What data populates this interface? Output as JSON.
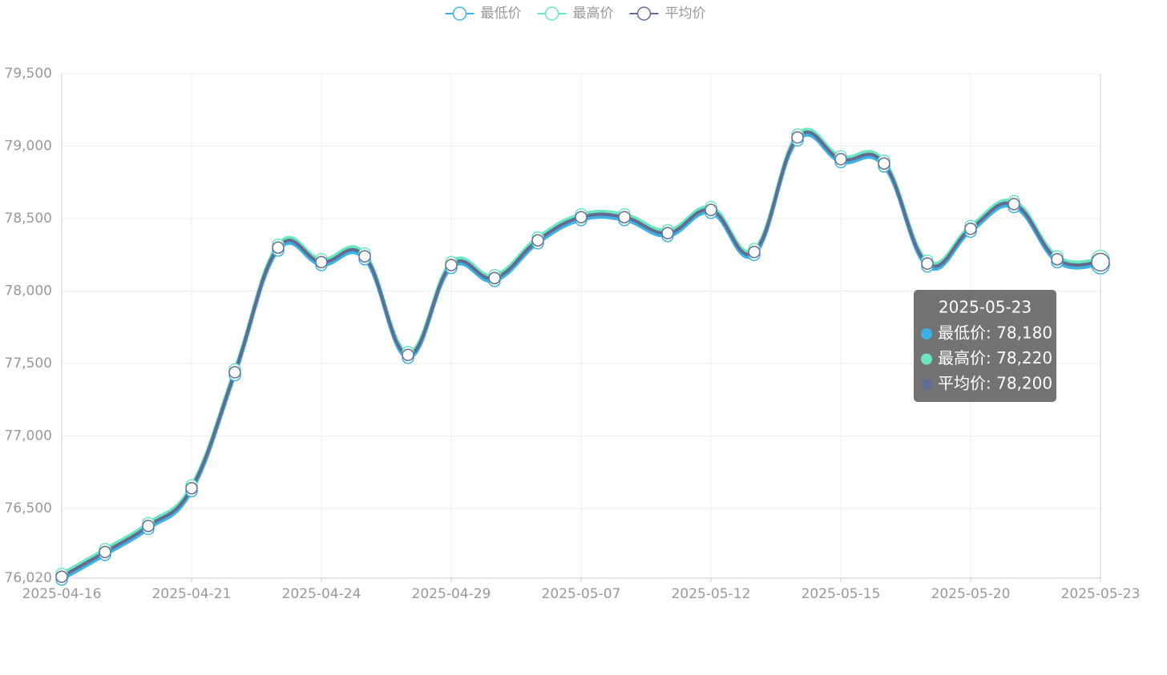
{
  "chart_data": {
    "type": "line",
    "categories": [
      "2025-04-16",
      null,
      null,
      "2025-04-21",
      null,
      null,
      "2025-04-24",
      null,
      null,
      "2025-04-29",
      null,
      null,
      "2025-05-07",
      null,
      null,
      "2025-05-12",
      null,
      null,
      "2025-05-15",
      null,
      null,
      "2025-05-20",
      null,
      null,
      "2025-05-23"
    ],
    "series": [
      {
        "name": "最低价",
        "color": "#3fb1e3",
        "values": [
          76010,
          76180,
          76360,
          76620,
          77420,
          78280,
          78180,
          78220,
          77540,
          78160,
          78070,
          78330,
          78490,
          78490,
          78380,
          78540,
          78250,
          79040,
          78890,
          78860,
          78170,
          78410,
          78580,
          78200,
          78180
        ]
      },
      {
        "name": "最高价",
        "color": "#6be6c1",
        "values": [
          76050,
          76220,
          76400,
          76660,
          77460,
          78320,
          78220,
          78260,
          77580,
          78200,
          78110,
          78370,
          78530,
          78530,
          78420,
          78580,
          78290,
          79080,
          78930,
          78900,
          78210,
          78450,
          78620,
          78240,
          78220
        ]
      },
      {
        "name": "平均价",
        "color": "#626c91",
        "values": [
          76030,
          76200,
          76380,
          76640,
          77440,
          78300,
          78200,
          78240,
          77560,
          78180,
          78090,
          78350,
          78510,
          78510,
          78400,
          78560,
          78270,
          79060,
          78910,
          78880,
          78190,
          78430,
          78600,
          78220,
          78200
        ]
      }
    ],
    "ylim": [
      76020,
      79500
    ],
    "yticks": [
      {
        "value": 76020,
        "label": "76,020"
      },
      {
        "value": 76500,
        "label": "76,500"
      },
      {
        "value": 77000,
        "label": "77,000"
      },
      {
        "value": 77500,
        "label": "77,500"
      },
      {
        "value": 78000,
        "label": "78,000"
      },
      {
        "value": 78500,
        "label": "78,500"
      },
      {
        "value": 79000,
        "label": "79,000"
      },
      {
        "value": 79500,
        "label": "79,500"
      }
    ],
    "grid": true,
    "smooth": true,
    "legend": "top",
    "tooltip": {
      "index": 24,
      "title": "2025-05-23",
      "rows": [
        "最低价: 78,180",
        "最高价: 78,220",
        "平均价: 78,200"
      ]
    }
  }
}
